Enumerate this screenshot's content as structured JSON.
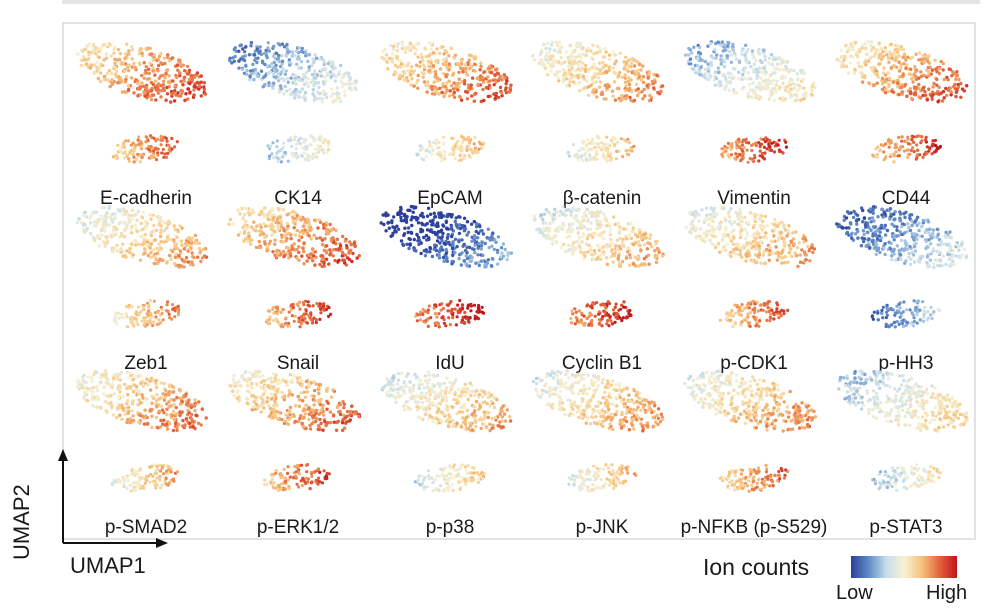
{
  "chart_data": {
    "type": "scatter",
    "title": "",
    "xlabel": "UMAP1",
    "ylabel": "UMAP2",
    "legend": {
      "title": "Ion counts",
      "low_label": "Low",
      "high_label": "High",
      "colormap": [
        "#2c3f9c",
        "#5f8cc6",
        "#c7ddec",
        "#f6f1d3",
        "#f6c37e",
        "#e4643a",
        "#c0151d"
      ],
      "placement": "bottom-right"
    },
    "markers": [
      {
        "name": "E-cadherin",
        "main_intensity": 0.72,
        "cluster_intensity": 0.75
      },
      {
        "name": "CK14",
        "main_intensity": 0.3,
        "cluster_intensity": 0.4
      },
      {
        "name": "EpCAM",
        "main_intensity": 0.7,
        "cluster_intensity": 0.55
      },
      {
        "name": "β-catenin",
        "main_intensity": 0.62,
        "cluster_intensity": 0.55
      },
      {
        "name": "Vimentin",
        "main_intensity": 0.4,
        "cluster_intensity": 0.82
      },
      {
        "name": "CD44",
        "main_intensity": 0.7,
        "cluster_intensity": 0.78
      },
      {
        "name": "Zeb1",
        "main_intensity": 0.58,
        "cluster_intensity": 0.65
      },
      {
        "name": "Snail",
        "main_intensity": 0.72,
        "cluster_intensity": 0.8
      },
      {
        "name": "IdU",
        "main_intensity": 0.05,
        "cluster_intensity": 0.9
      },
      {
        "name": "Cyclin B1",
        "main_intensity": 0.55,
        "cluster_intensity": 0.88
      },
      {
        "name": "p-CDK1",
        "main_intensity": 0.58,
        "cluster_intensity": 0.75
      },
      {
        "name": "p-HH3",
        "main_intensity": 0.22,
        "cluster_intensity": 0.22
      },
      {
        "name": "p-SMAD2",
        "main_intensity": 0.65,
        "cluster_intensity": 0.6
      },
      {
        "name": "p-ERK1/2",
        "main_intensity": 0.68,
        "cluster_intensity": 0.78
      },
      {
        "name": "p-p38",
        "main_intensity": 0.55,
        "cluster_intensity": 0.5
      },
      {
        "name": "p-JNK",
        "main_intensity": 0.58,
        "cluster_intensity": 0.55
      },
      {
        "name": "p-NFKB (p-S529)",
        "main_intensity": 0.6,
        "cluster_intensity": 0.72
      },
      {
        "name": "p-STAT3",
        "main_intensity": 0.45,
        "cluster_intensity": 0.42
      }
    ]
  }
}
